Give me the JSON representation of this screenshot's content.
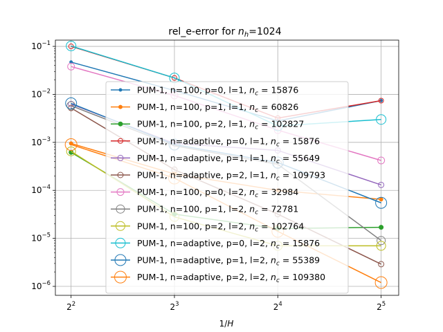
{
  "chart_data": {
    "type": "line",
    "title_main": "rel_e-error for ",
    "title_sym": "n",
    "title_sub": "h",
    "title_tail": "=1024",
    "xlabel_main": "1/",
    "xlabel_sym": "H",
    "xscale": "log2",
    "yscale": "log10",
    "xlim": [
      3.6,
      36
    ],
    "ylim": [
      6.5e-07,
      0.135
    ],
    "grid": true,
    "legend_placement": "center",
    "x": [
      4,
      8,
      16,
      32
    ],
    "x_ticks": [
      {
        "value": 4,
        "base": "2",
        "exp": "2"
      },
      {
        "value": 8,
        "base": "2",
        "exp": "3"
      },
      {
        "value": 16,
        "base": "2",
        "exp": "4"
      },
      {
        "value": 32,
        "base": "2",
        "exp": "5"
      }
    ],
    "y_ticks": [
      {
        "value": 1e-06,
        "base": "10",
        "exp": "−6"
      },
      {
        "value": 1e-05,
        "base": "10",
        "exp": "−5"
      },
      {
        "value": 0.0001,
        "base": "10",
        "exp": "−4"
      },
      {
        "value": 0.001,
        "base": "10",
        "exp": "−3"
      },
      {
        "value": 0.01,
        "base": "10",
        "exp": "−2"
      },
      {
        "value": 0.1,
        "base": "10",
        "exp": "−1"
      }
    ],
    "series": [
      {
        "label": "PUM-1, n=100, p=0, l=1, ",
        "nc": "15876",
        "color": "#1f77b4",
        "marker": "dot",
        "ms": 2,
        "values": [
          0.047,
          0.012,
          0.0028,
          0.0074
        ]
      },
      {
        "label": "PUM-1, n=100, p=1, l=1, ",
        "nc": "60826",
        "color": "#ff7f0e",
        "marker": "dot",
        "ms": 2.5,
        "values": [
          0.00095,
          0.00022,
          0.0001,
          6.5e-05
        ]
      },
      {
        "label": "PUM-1, n=100, p=2, l=1, ",
        "nc": "102827",
        "color": "#2ca02c",
        "marker": "dot",
        "ms": 3,
        "values": [
          0.00062,
          3.2e-05,
          1.6e-05,
          1.7e-05
        ]
      },
      {
        "label": "PUM-1, n=adaptive, p=0, l=1, ",
        "nc": "15876",
        "color": "#d62728",
        "marker": "ring",
        "ms": 3.5,
        "values": [
          0.1,
          0.022,
          0.0032,
          0.0074
        ]
      },
      {
        "label": "PUM-1, n=adaptive, p=1, l=1, ",
        "nc": "55649",
        "color": "#9467bd",
        "marker": "ring",
        "ms": 4,
        "values": [
          0.0063,
          0.00095,
          0.00068,
          0.00013
        ]
      },
      {
        "label": "PUM-1, n=adaptive, p=2, l=1, ",
        "nc": "109793",
        "color": "#8c564b",
        "marker": "ring",
        "ms": 4,
        "values": [
          0.0052,
          0.00027,
          3.2e-05,
          2.9e-06
        ]
      },
      {
        "label": "PUM-1, n=100, p=0, l=2, ",
        "nc": "32984",
        "color": "#e377c2",
        "marker": "ring",
        "ms": 5,
        "values": [
          0.038,
          0.0095,
          0.0018,
          0.00042
        ]
      },
      {
        "label": "PUM-1, n=100, p=1, l=2, ",
        "nc": "72781",
        "color": "#7f7f7f",
        "marker": "ring",
        "ms": 6,
        "values": [
          0.0058,
          0.00085,
          0.00035,
          9e-06
        ]
      },
      {
        "label": "PUM-1, n=100, p=2, l=2, ",
        "nc": "102764",
        "color": "#bcbd22",
        "marker": "ring",
        "ms": 6.5,
        "values": [
          0.00065,
          2.8e-05,
          7e-06,
          7e-06
        ]
      },
      {
        "label": "PUM-1, n=adaptive, p=0, l=2, ",
        "nc": "15876",
        "color": "#17becf",
        "marker": "ring",
        "ms": 7,
        "values": [
          0.102,
          0.022,
          0.0022,
          0.003
        ]
      },
      {
        "label": "PUM-1, n=adaptive, p=1, l=2, ",
        "nc": "55389",
        "color": "#1f77b4",
        "marker": "ring",
        "ms": 8,
        "values": [
          0.0065,
          0.0009,
          0.00038,
          5.5e-05
        ]
      },
      {
        "label": "PUM-1, n=adaptive, p=2, l=2, ",
        "nc": "109380",
        "color": "#ff7f0e",
        "marker": "ring",
        "ms": 8.5,
        "values": [
          0.0009,
          0.00018,
          1.4e-05,
          1.2e-06
        ]
      }
    ]
  }
}
